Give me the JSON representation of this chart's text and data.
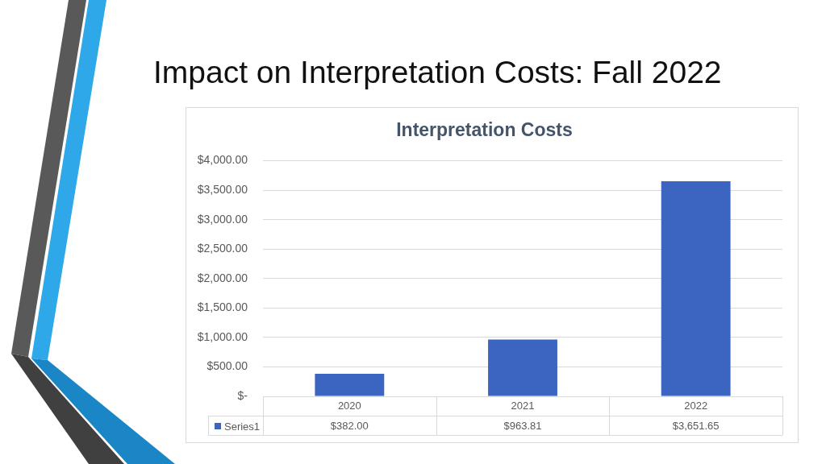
{
  "chart_data": {
    "type": "bar",
    "title": "Impact on Interpretation Costs: Fall 2022",
    "subtitle": "Interpretation Costs",
    "categories": [
      "2020",
      "2021",
      "2022"
    ],
    "series": [
      {
        "name": "Series1",
        "color": "#3b65c0",
        "values": [
          382,
          963.81,
          3651.65
        ],
        "value_labels": [
          "$382.00",
          "$963.81",
          "$3,651.65"
        ]
      }
    ],
    "ylim": [
      0,
      4000
    ],
    "yticks": [
      {
        "value": 0,
        "label": "$-"
      },
      {
        "value": 500,
        "label": "$500.00"
      },
      {
        "value": 1000,
        "label": "$1,000.00"
      },
      {
        "value": 1500,
        "label": "$1,500.00"
      },
      {
        "value": 2000,
        "label": "$2,000.00"
      },
      {
        "value": 2500,
        "label": "$2,500.00"
      },
      {
        "value": 3000,
        "label": "$3,000.00"
      },
      {
        "value": 3500,
        "label": "$3,500.00"
      },
      {
        "value": 4000,
        "label": "$4,000.00"
      }
    ],
    "grid": "y",
    "legend": "bottom left"
  }
}
